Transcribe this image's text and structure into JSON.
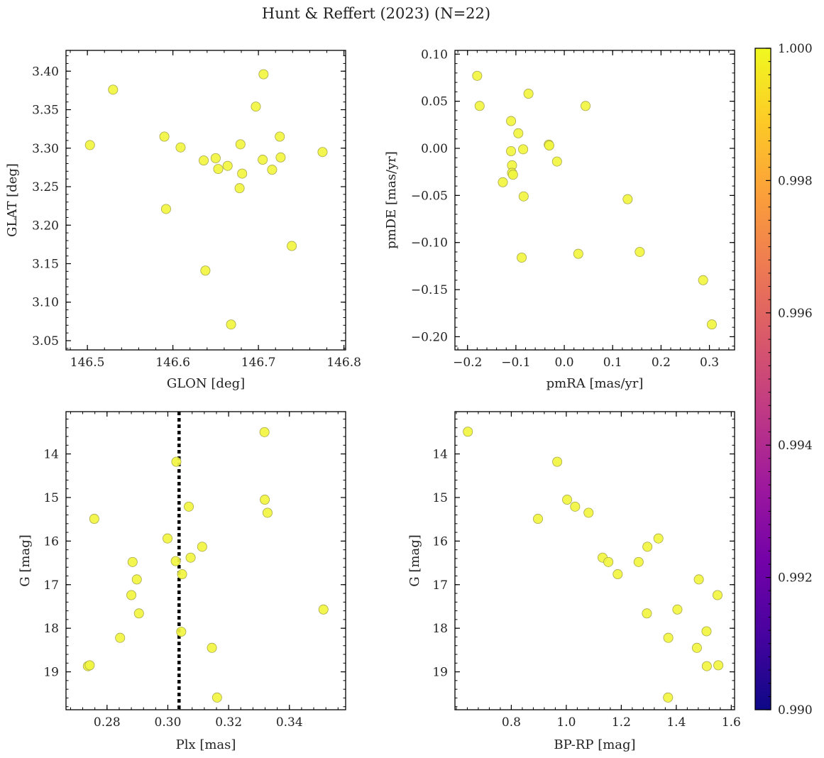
{
  "title": "Hunt & Reffert (2023) (N=22)",
  "colorbar": {
    "ticks": [
      "0.990",
      "0.992",
      "0.994",
      "0.996",
      "0.998",
      "1.000"
    ],
    "range": [
      0.99,
      1.0
    ],
    "cmap_stops": [
      "#0d0887",
      "#46039f",
      "#7201a8",
      "#9c179e",
      "#bd3786",
      "#d8576b",
      "#ed7953",
      "#fb9f3a",
      "#fdca26",
      "#f0f921"
    ],
    "point_color": "#f1f53f"
  },
  "chart_data": [
    {
      "type": "scatter",
      "id": "glon-glat",
      "xlabel": "GLON [deg]",
      "ylabel": "GLAT [deg]",
      "xlim": [
        146.475,
        146.802
      ],
      "ylim": [
        3.038,
        3.427
      ],
      "xticks": [
        146.5,
        146.6,
        146.7,
        146.8
      ],
      "xtick_labels": [
        "146.5",
        "146.6",
        "146.7",
        "146.8"
      ],
      "yticks": [
        3.05,
        3.1,
        3.15,
        3.2,
        3.25,
        3.3,
        3.35,
        3.4
      ],
      "ytick_labels": [
        "3.05",
        "3.10",
        "3.15",
        "3.20",
        "3.25",
        "3.30",
        "3.35",
        "3.40"
      ],
      "invert_y": false,
      "x": [
        146.503,
        146.53,
        146.59,
        146.592,
        146.609,
        146.636,
        146.638,
        146.65,
        146.653,
        146.664,
        146.668,
        146.678,
        146.679,
        146.681,
        146.697,
        146.705,
        146.706,
        146.716,
        146.725,
        146.726,
        146.739,
        146.775
      ],
      "y": [
        3.304,
        3.376,
        3.315,
        3.221,
        3.301,
        3.284,
        3.141,
        3.287,
        3.273,
        3.277,
        3.071,
        3.248,
        3.305,
        3.267,
        3.354,
        3.285,
        3.396,
        3.272,
        3.315,
        3.288,
        3.173,
        3.295
      ]
    },
    {
      "type": "scatter",
      "id": "pmra-pmde",
      "xlabel": "pmRA [mas/yr]",
      "ylabel": "pmDE [mas/yr]",
      "xlim": [
        -0.226,
        0.352
      ],
      "ylim": [
        -0.214,
        0.104
      ],
      "xticks": [
        -0.2,
        -0.1,
        0.0,
        0.1,
        0.2,
        0.3
      ],
      "xtick_labels": [
        "−0.2",
        "−0.1",
        "0.0",
        "0.1",
        "0.2",
        "0.3"
      ],
      "yticks": [
        -0.2,
        -0.15,
        -0.1,
        -0.05,
        0.0,
        0.05,
        0.1
      ],
      "ytick_labels": [
        "−0.20",
        "−0.15",
        "−0.10",
        "−0.05",
        "0.00",
        "0.05",
        "0.10"
      ],
      "invert_y": false,
      "x": [
        -0.18,
        -0.175,
        -0.074,
        -0.11,
        -0.095,
        -0.11,
        -0.085,
        -0.032,
        -0.031,
        -0.015,
        -0.108,
        -0.108,
        -0.106,
        -0.127,
        -0.084,
        -0.088,
        0.044,
        0.029,
        0.131,
        0.156,
        0.287,
        0.305
      ],
      "y": [
        0.077,
        0.045,
        0.058,
        0.029,
        0.016,
        -0.003,
        -0.001,
        0.004,
        0.003,
        -0.014,
        -0.018,
        -0.026,
        -0.028,
        -0.036,
        -0.051,
        -0.116,
        0.045,
        -0.112,
        -0.054,
        -0.11,
        -0.14,
        -0.187
      ]
    },
    {
      "type": "scatter",
      "id": "plx-g",
      "xlabel": "Plx [mas]",
      "ylabel": "G [mag]",
      "xlim": [
        0.2665,
        0.3585
      ],
      "ylim": [
        13.03,
        19.87
      ],
      "xticks": [
        0.28,
        0.3,
        0.32,
        0.34
      ],
      "xtick_labels": [
        "0.28",
        "0.30",
        "0.32",
        "0.34"
      ],
      "yticks": [
        14,
        15,
        16,
        17,
        18,
        19
      ],
      "ytick_labels": [
        "14",
        "15",
        "16",
        "17",
        "18",
        "19"
      ],
      "invert_y": true,
      "vline": 0.3037,
      "x": [
        0.2737,
        0.2743,
        0.2758,
        0.2843,
        0.288,
        0.2884,
        0.2898,
        0.2905,
        0.2999,
        0.3026,
        0.3028,
        0.3044,
        0.3047,
        0.3069,
        0.3075,
        0.3113,
        0.3145,
        0.3162,
        0.3318,
        0.3319,
        0.3328,
        0.3512
      ],
      "y": [
        18.87,
        18.85,
        15.49,
        18.22,
        17.24,
        16.48,
        16.88,
        17.66,
        15.94,
        16.46,
        14.18,
        18.08,
        16.76,
        15.21,
        16.38,
        16.13,
        18.45,
        19.59,
        13.5,
        15.05,
        15.35,
        17.57
      ]
    },
    {
      "type": "scatter",
      "id": "bprp-g",
      "xlabel": "BP-RP [mag]",
      "ylabel": "G [mag]",
      "xlim": [
        0.595,
        1.612
      ],
      "ylim": [
        13.03,
        19.87
      ],
      "xticks": [
        0.8,
        1.0,
        1.2,
        1.4,
        1.6
      ],
      "xtick_labels": [
        "0.8",
        "1.0",
        "1.2",
        "1.4",
        "1.6"
      ],
      "yticks": [
        14,
        15,
        16,
        17,
        18,
        19
      ],
      "ytick_labels": [
        "14",
        "15",
        "16",
        "17",
        "18",
        "19"
      ],
      "invert_y": true,
      "x": [
        0.642,
        0.897,
        0.967,
        1.003,
        1.032,
        1.081,
        1.132,
        1.153,
        1.187,
        1.263,
        1.293,
        1.295,
        1.335,
        1.371,
        1.37,
        1.404,
        1.475,
        1.482,
        1.51,
        1.511,
        1.55,
        1.553
      ],
      "y": [
        13.49,
        15.49,
        14.18,
        15.05,
        15.21,
        15.35,
        16.38,
        16.48,
        16.76,
        16.48,
        17.66,
        16.13,
        15.94,
        18.22,
        19.59,
        17.57,
        18.45,
        16.88,
        18.07,
        18.87,
        17.24,
        18.85
      ]
    }
  ]
}
